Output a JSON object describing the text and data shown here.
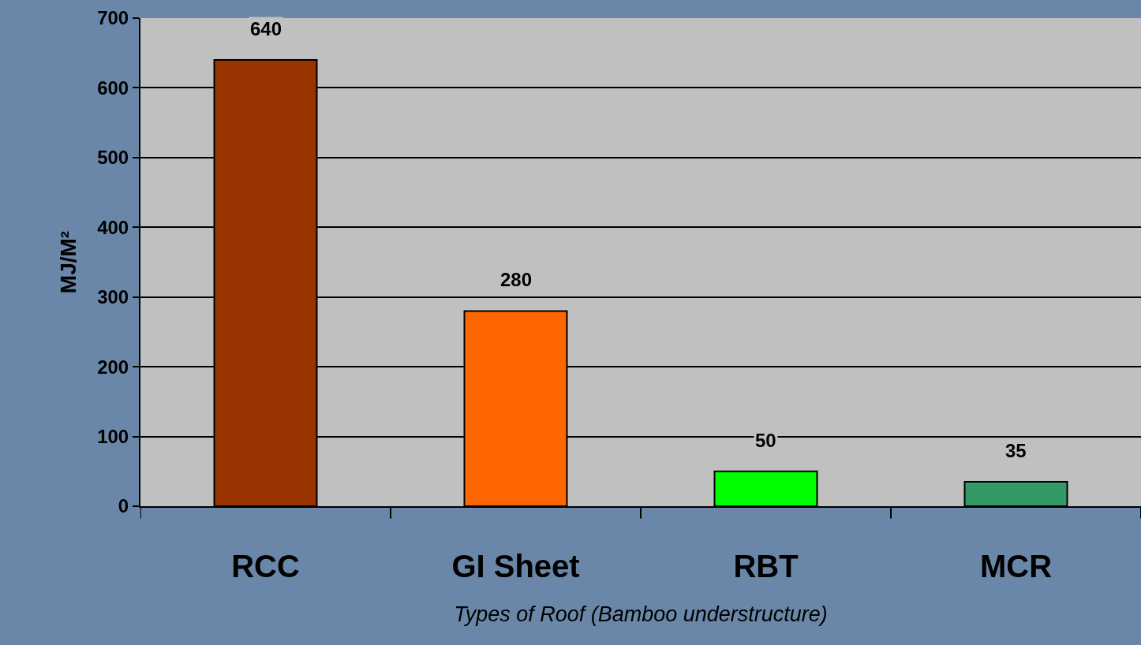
{
  "chart_data": {
    "type": "bar",
    "xlabel": "Types of Roof (Bamboo understructure)",
    "ylabel": "MJ/M²",
    "categories": [
      "RCC",
      "GI Sheet",
      "RBT",
      "MCR"
    ],
    "values": [
      640,
      280,
      50,
      35
    ],
    "colors": [
      "#993300",
      "#ff6600",
      "#00ff00",
      "#339966"
    ],
    "ylim": [
      0,
      700
    ],
    "yticks": [
      0,
      100,
      200,
      300,
      400,
      500,
      600,
      700
    ],
    "grid": "y",
    "data_labels": true,
    "legend": false
  }
}
